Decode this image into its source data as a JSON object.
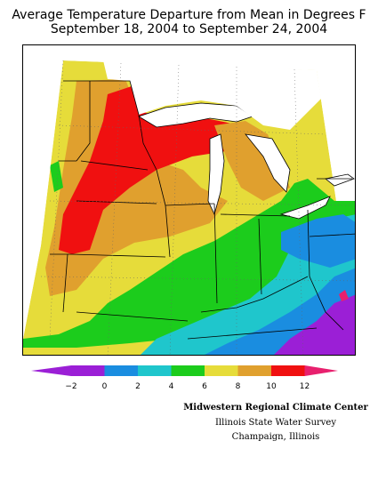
{
  "title": {
    "line1": "Average Temperature Departure from Mean in Degrees F",
    "line2": "September 18, 2004 to September 24, 2004"
  },
  "legend": {
    "ticks": [
      "−2",
      "0",
      "2",
      "4",
      "6",
      "8",
      "10",
      "12"
    ],
    "colors": [
      "#9b1fd6",
      "#1a8de0",
      "#1fc6cc",
      "#1ccc1c",
      "#e6dc3a",
      "#e0a02e",
      "#f01010",
      "#e8206e"
    ]
  },
  "credits": {
    "line1": "Midwestern Regional Climate Center",
    "line2": "Illinois State Water Survey",
    "line3": "Champaign, Illinois"
  },
  "map_colors": {
    "purple": "#9b1fd6",
    "blue": "#1a8de0",
    "cyan": "#1fc6cc",
    "green": "#1ccc1c",
    "yellow": "#e6dc3a",
    "orange": "#e0a02e",
    "red": "#f01010",
    "magenta": "#e8206e"
  }
}
